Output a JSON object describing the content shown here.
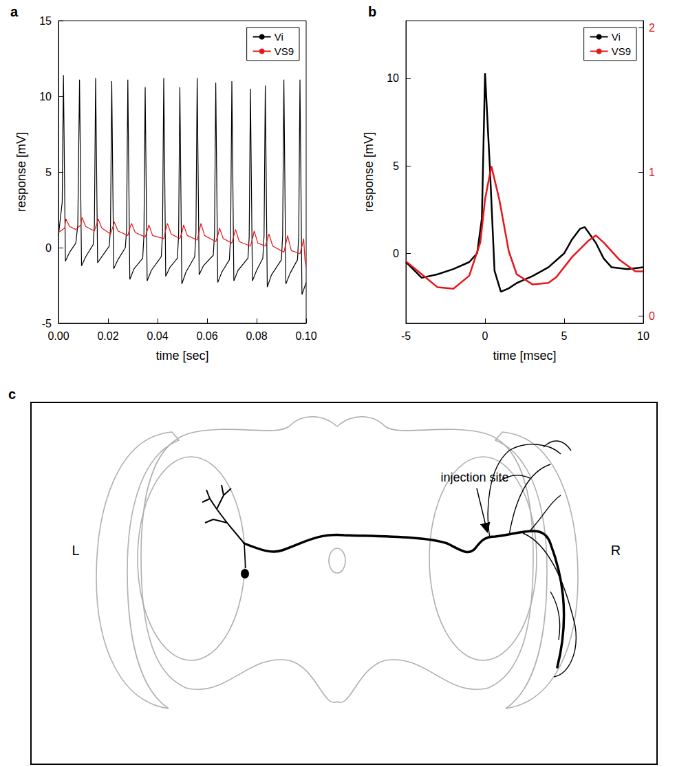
{
  "chart_data": [
    {
      "panel": "a",
      "type": "line",
      "xlabel": "time [sec]",
      "ylabel": "response [mV]",
      "xlim": [
        0,
        0.1
      ],
      "xticks": [
        {
          "value": 0,
          "label": "0.00"
        },
        {
          "value": 0.02,
          "label": "0.02"
        },
        {
          "value": 0.04,
          "label": "0.04"
        },
        {
          "value": 0.06,
          "label": "0.06"
        },
        {
          "value": 0.08,
          "label": "0.08"
        },
        {
          "value": 0.1,
          "label": "0.10"
        }
      ],
      "ylim": [
        -5,
        15
      ],
      "yticks": [
        -5,
        0,
        5,
        10,
        15
      ],
      "legend": "upper right",
      "series": [
        {
          "name": "Vi",
          "color": "#000000",
          "x": [
            0,
            0.0015,
            0.002,
            0.0028,
            0.0045,
            0.007,
            0.0078,
            0.0085,
            0.0093,
            0.011,
            0.014,
            0.0145,
            0.015,
            0.0158,
            0.0175,
            0.0205,
            0.021,
            0.0215,
            0.0223,
            0.024,
            0.027,
            0.0275,
            0.028,
            0.0288,
            0.0305,
            0.034,
            0.0345,
            0.035,
            0.0358,
            0.0375,
            0.0415,
            0.042,
            0.0425,
            0.0433,
            0.045,
            0.048,
            0.0485,
            0.049,
            0.0498,
            0.0515,
            0.055,
            0.0555,
            0.056,
            0.0568,
            0.0585,
            0.0625,
            0.063,
            0.0635,
            0.0643,
            0.066,
            0.069,
            0.0695,
            0.07,
            0.0708,
            0.0725,
            0.0765,
            0.077,
            0.0775,
            0.0783,
            0.08,
            0.0825,
            0.083,
            0.0835,
            0.0843,
            0.086,
            0.09,
            0.0905,
            0.091,
            0.0918,
            0.0935,
            0.0965,
            0.097,
            0.0975,
            0.0983,
            0.1
          ],
          "values": [
            0.8,
            3,
            11.4,
            -0.9,
            -0.3,
            0.3,
            1.5,
            11.1,
            -1.2,
            -0.6,
            0.2,
            1.5,
            11.2,
            -1.0,
            -0.6,
            0.1,
            1.3,
            11.0,
            -1.4,
            -0.8,
            0,
            1.2,
            11.1,
            -2.1,
            -1.4,
            -0.7,
            0.8,
            10.6,
            -2.2,
            -1.5,
            -0.6,
            0.9,
            11.2,
            -1.9,
            -1.3,
            -0.7,
            0.8,
            10.6,
            -2.4,
            -1.6,
            -0.6,
            1.0,
            11.2,
            -1.8,
            -1.2,
            -0.5,
            0.9,
            10.9,
            -2.3,
            -1.6,
            -0.8,
            0.8,
            11.0,
            -2.2,
            -1.5,
            -0.7,
            0.7,
            10.5,
            -2.2,
            -1.5,
            -0.7,
            0.8,
            10.7,
            -2.6,
            -1.8,
            -0.8,
            0.8,
            11.1,
            -2.4,
            -1.7,
            -0.8,
            0.8,
            11.1,
            -3.1,
            -2.3
          ]
        },
        {
          "name": "VS9",
          "color": "#e8141b",
          "x": [
            0,
            0.0025,
            0.003,
            0.0045,
            0.007,
            0.009,
            0.0095,
            0.011,
            0.0145,
            0.0155,
            0.016,
            0.0175,
            0.021,
            0.022,
            0.0225,
            0.024,
            0.028,
            0.029,
            0.0295,
            0.031,
            0.035,
            0.036,
            0.0365,
            0.038,
            0.0425,
            0.0435,
            0.044,
            0.0455,
            0.049,
            0.05,
            0.0505,
            0.052,
            0.056,
            0.057,
            0.0575,
            0.059,
            0.0635,
            0.0645,
            0.065,
            0.0665,
            0.07,
            0.071,
            0.0715,
            0.073,
            0.0775,
            0.0785,
            0.079,
            0.0805,
            0.0835,
            0.0845,
            0.085,
            0.0865,
            0.091,
            0.092,
            0.0925,
            0.094,
            0.0975,
            0.0985,
            0.099,
            0.0995,
            0.1
          ],
          "values": [
            1.0,
            1.3,
            1.9,
            1.4,
            1.2,
            1.5,
            2.0,
            1.4,
            1.1,
            1.6,
            1.9,
            1.3,
            0.9,
            1.4,
            1.7,
            1.1,
            0.8,
            1.4,
            1.6,
            1.0,
            0.7,
            1.2,
            1.5,
            0.8,
            0.6,
            1.3,
            1.6,
            0.9,
            0.6,
            1.1,
            1.5,
            0.8,
            0.5,
            1.2,
            1.6,
            0.8,
            0.4,
            0.9,
            1.3,
            0.6,
            0.3,
            0.9,
            1.2,
            0.4,
            0.1,
            0.7,
            1.1,
            0.3,
            0.1,
            0.6,
            0.9,
            0.1,
            -0.3,
            0.4,
            0.8,
            -0.2,
            -0.4,
            0.2,
            0.6,
            -0.8,
            -1.3
          ]
        }
      ]
    },
    {
      "panel": "b",
      "type": "line",
      "xlabel": "time [msec]",
      "ylabel": "response [mV]",
      "xlim": [
        -5,
        10
      ],
      "xticks": [
        -5,
        0,
        5,
        10
      ],
      "ylim": [
        -4,
        13.3
      ],
      "yticks": [
        0,
        5,
        10
      ],
      "y2lim": [
        -0.05,
        2.05
      ],
      "y2ticks": [
        0,
        1,
        2
      ],
      "legend": "upper right",
      "series": [
        {
          "name": "Vi",
          "color": "#000000",
          "x": [
            -5,
            -4,
            -3,
            -2,
            -1,
            -0.5,
            -0.2,
            0,
            0.3,
            0.6,
            1,
            1.5,
            2,
            3,
            4,
            5,
            5.5,
            6,
            6.3,
            7,
            7.5,
            8,
            9,
            10
          ],
          "values": [
            -0.5,
            -1.4,
            -1.2,
            -0.9,
            -0.5,
            0,
            2,
            10.3,
            5,
            -1,
            -2.2,
            -2,
            -1.7,
            -1.3,
            -0.8,
            0,
            0.8,
            1.4,
            1.5,
            0.6,
            -0.3,
            -0.8,
            -0.9,
            -0.8
          ]
        },
        {
          "name": "VS9",
          "color": "#e8141b",
          "axis": "y2",
          "x": [
            -5,
            -4,
            -3,
            -2,
            -1,
            -0.3,
            0,
            0.4,
            0.9,
            1.5,
            2,
            3,
            4,
            4.5,
            5.5,
            6.5,
            7,
            7.5,
            8.5,
            9.5,
            10
          ],
          "values": [
            0.38,
            0.29,
            0.2,
            0.19,
            0.28,
            0.51,
            0.81,
            1.04,
            0.81,
            0.45,
            0.29,
            0.22,
            0.23,
            0.27,
            0.41,
            0.52,
            0.56,
            0.51,
            0.39,
            0.31,
            0.31
          ]
        }
      ]
    }
  ],
  "diagram": {
    "panel": "c",
    "left_label": "L",
    "right_label": "R",
    "arrow_label": "injection site"
  }
}
